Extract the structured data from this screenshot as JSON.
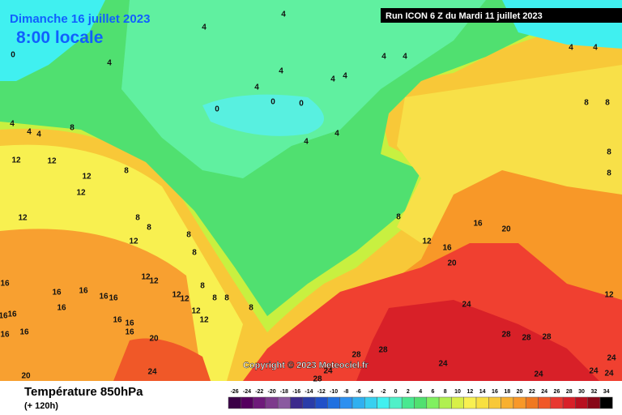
{
  "header": {
    "date": "Dimanche 16 juillet 2023",
    "time": "8:00 locale",
    "run": "Run ICON 6 Z du Mardi 11 juillet 2023"
  },
  "copyright": "Copyright © 2023 Meteociel.fr",
  "footer": {
    "title": "Température 850hPa",
    "lead": "(+ 120h)"
  },
  "legend": {
    "ticks": [
      -26,
      -24,
      -22,
      -20,
      -18,
      -16,
      -14,
      -12,
      -10,
      -8,
      -6,
      -4,
      -2,
      0,
      2,
      4,
      6,
      8,
      10,
      12,
      14,
      16,
      18,
      20,
      22,
      24,
      26,
      28,
      30,
      32,
      34
    ],
    "colors": [
      "#3a0046",
      "#55005f",
      "#6e1a7a",
      "#7d3a8c",
      "#8a5aa0",
      "#3c2a8c",
      "#2a3ca8",
      "#2050c8",
      "#2070e0",
      "#2c90f0",
      "#30b0f0",
      "#38d0f0",
      "#40f0f0",
      "#50f0c8",
      "#48e890",
      "#50e070",
      "#80f060",
      "#b0f050",
      "#d8f048",
      "#f8f050",
      "#f8e040",
      "#f8c838",
      "#f8b030",
      "#f89828",
      "#f07820",
      "#f05828",
      "#e83830",
      "#d82028",
      "#b81020",
      "#880818",
      "#000000"
    ]
  },
  "contour_labels": [
    4,
    4,
    0,
    4,
    4,
    4,
    4,
    4,
    4,
    4,
    0,
    0,
    0,
    4,
    4,
    4,
    8,
    4,
    4,
    12,
    12,
    12,
    12,
    8,
    12,
    8,
    8,
    12,
    8,
    8,
    12,
    12,
    8,
    8,
    8,
    8,
    12,
    12,
    12,
    12,
    16,
    16,
    16,
    16,
    16,
    16,
    16,
    16,
    16,
    16,
    16,
    16,
    16,
    20,
    20,
    24,
    8,
    12,
    16,
    16,
    20,
    20,
    24,
    28,
    28,
    28,
    28,
    28,
    24,
    28,
    24,
    24,
    24,
    24,
    24,
    12,
    8,
    8,
    8,
    8,
    4,
    4
  ]
}
